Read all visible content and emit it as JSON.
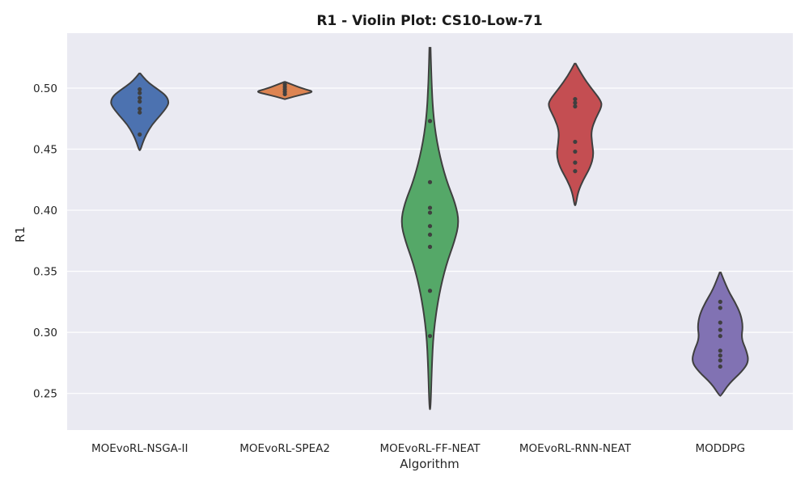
{
  "chart_data": {
    "type": "violin",
    "title": "R1 - Violin Plot: CS10-Low-71",
    "xlabel": "Algorithm",
    "ylabel": "R1",
    "ylim": [
      0.22,
      0.545
    ],
    "yticks": [
      0.25,
      0.3,
      0.35,
      0.4,
      0.45,
      0.5
    ],
    "ytick_labels": [
      "0.25",
      "0.30",
      "0.35",
      "0.40",
      "0.45",
      "0.50"
    ],
    "grid": true,
    "background": "#eaeaf2",
    "categories": [
      "MOEvoRL-NSGA-II",
      "MOEvoRL-SPEA2",
      "MOEvoRL-FF-NEAT",
      "MOEvoRL-RNN-NEAT",
      "MODDPG"
    ],
    "series": [
      {
        "category": "MOEvoRL-NSGA-II",
        "color": "#4c72b0",
        "range": [
          0.449,
          0.512
        ],
        "points": [
          0.499,
          0.496,
          0.492,
          0.489,
          0.483,
          0.48,
          0.462
        ],
        "density": [
          [
            0.449,
            0.02
          ],
          [
            0.455,
            0.1
          ],
          [
            0.462,
            0.22
          ],
          [
            0.47,
            0.42
          ],
          [
            0.478,
            0.72
          ],
          [
            0.485,
            0.95
          ],
          [
            0.489,
            1.0
          ],
          [
            0.494,
            0.9
          ],
          [
            0.499,
            0.62
          ],
          [
            0.504,
            0.32
          ],
          [
            0.509,
            0.12
          ],
          [
            0.512,
            0.02
          ]
        ]
      },
      {
        "category": "MOEvoRL-SPEA2",
        "color": "#dd8452",
        "range": [
          0.491,
          0.505
        ],
        "points": [
          0.503,
          0.501,
          0.499,
          0.497,
          0.495
        ],
        "density": [
          [
            0.491,
            0.02
          ],
          [
            0.493,
            0.3
          ],
          [
            0.495,
            0.65
          ],
          [
            0.497,
            1.0
          ],
          [
            0.499,
            0.7
          ],
          [
            0.501,
            0.45
          ],
          [
            0.503,
            0.24
          ],
          [
            0.505,
            0.02
          ]
        ]
      },
      {
        "category": "MOEvoRL-FF-NEAT",
        "color": "#55a868",
        "range": [
          0.237,
          0.533
        ],
        "points": [
          0.473,
          0.423,
          0.402,
          0.398,
          0.387,
          0.38,
          0.37,
          0.334,
          0.297
        ],
        "density": [
          [
            0.237,
            0.02
          ],
          [
            0.27,
            0.06
          ],
          [
            0.3,
            0.12
          ],
          [
            0.33,
            0.3
          ],
          [
            0.355,
            0.55
          ],
          [
            0.375,
            0.85
          ],
          [
            0.39,
            1.0
          ],
          [
            0.405,
            0.88
          ],
          [
            0.425,
            0.55
          ],
          [
            0.45,
            0.28
          ],
          [
            0.475,
            0.12
          ],
          [
            0.505,
            0.05
          ],
          [
            0.533,
            0.02
          ]
        ]
      },
      {
        "category": "MOEvoRL-RNN-NEAT",
        "color": "#c44e52",
        "range": [
          0.404,
          0.52
        ],
        "points": [
          0.491,
          0.488,
          0.485,
          0.456,
          0.448,
          0.439,
          0.432
        ],
        "density": [
          [
            0.404,
            0.02
          ],
          [
            0.415,
            0.1
          ],
          [
            0.425,
            0.28
          ],
          [
            0.435,
            0.52
          ],
          [
            0.445,
            0.64
          ],
          [
            0.455,
            0.58
          ],
          [
            0.465,
            0.55
          ],
          [
            0.475,
            0.7
          ],
          [
            0.485,
            0.92
          ],
          [
            0.49,
            0.88
          ],
          [
            0.5,
            0.55
          ],
          [
            0.51,
            0.25
          ],
          [
            0.52,
            0.02
          ]
        ]
      },
      {
        "category": "MODDPG",
        "color": "#8172b3",
        "range": [
          0.248,
          0.349
        ],
        "points": [
          0.325,
          0.32,
          0.308,
          0.302,
          0.297,
          0.285,
          0.281,
          0.277,
          0.272
        ],
        "density": [
          [
            0.248,
            0.02
          ],
          [
            0.258,
            0.3
          ],
          [
            0.268,
            0.75
          ],
          [
            0.276,
            0.98
          ],
          [
            0.285,
            0.9
          ],
          [
            0.295,
            0.72
          ],
          [
            0.305,
            0.78
          ],
          [
            0.315,
            0.7
          ],
          [
            0.325,
            0.5
          ],
          [
            0.335,
            0.25
          ],
          [
            0.349,
            0.02
          ]
        ]
      }
    ]
  }
}
